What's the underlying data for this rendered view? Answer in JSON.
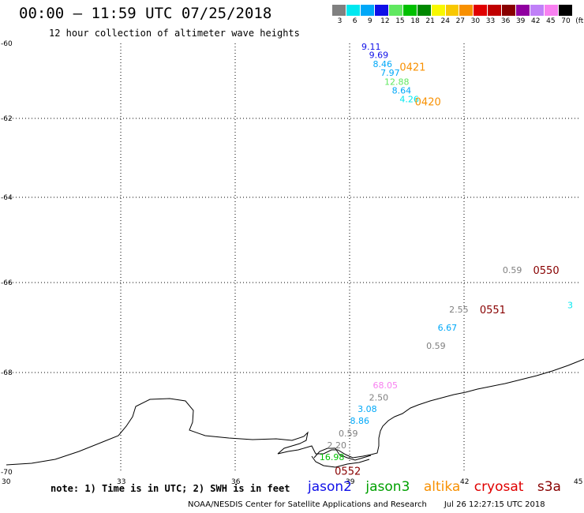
{
  "header": {
    "title": "00:00 – 11:59 UTC 07/25/2018",
    "subtitle": "12 hour collection of altimeter wave heights"
  },
  "legend": {
    "colors": [
      "#808080",
      "#00e8f0",
      "#00a8f8",
      "#1010e8",
      "#60e860",
      "#00c000",
      "#008800",
      "#f8f800",
      "#f8c800",
      "#f89000",
      "#e00000",
      "#c00000",
      "#880000",
      "#9000a0",
      "#c080f8",
      "#f880f0",
      "#000000"
    ],
    "labels": [
      "3",
      "6",
      "9",
      "12",
      "15",
      "18",
      "21",
      "24",
      "27",
      "30",
      "33",
      "36",
      "39",
      "42",
      "45",
      "70",
      "(ft)"
    ]
  },
  "axes": {
    "x_ticks": [
      "30",
      "33",
      "36",
      "39",
      "42",
      "45"
    ],
    "y_ticks": [
      "-60",
      "-62",
      "-64",
      "-66",
      "-68",
      "-70"
    ]
  },
  "map_data": {
    "lon_range": [
      30,
      45
    ],
    "lat_range": [
      -70,
      -60
    ],
    "observations": [
      {
        "lon": 39.6,
        "lat": -60.08,
        "value": "9.11",
        "color": "#1010e8"
      },
      {
        "lon": 39.8,
        "lat": -60.3,
        "value": "9.69",
        "color": "#1010e8"
      },
      {
        "lon": 39.9,
        "lat": -60.55,
        "value": "8.46",
        "color": "#00a8f8"
      },
      {
        "lon": 40.1,
        "lat": -60.78,
        "value": "7.97",
        "color": "#00a8f8"
      },
      {
        "lon": 40.2,
        "lat": -61.02,
        "value": "12.88",
        "color": "#60e860"
      },
      {
        "lon": 40.4,
        "lat": -61.25,
        "value": "8.64",
        "color": "#00a8f8"
      },
      {
        "lon": 40.6,
        "lat": -61.48,
        "value": "4.26",
        "color": "#00e8f0"
      },
      {
        "lon": 43.3,
        "lat": -65.7,
        "value": "0.59",
        "color": "#808080"
      },
      {
        "lon": 41.9,
        "lat": -66.6,
        "value": "2.55",
        "color": "#808080"
      },
      {
        "lon": 41.6,
        "lat": -67.0,
        "value": "6.67",
        "color": "#00a8f8"
      },
      {
        "lon": 41.3,
        "lat": -67.4,
        "value": "0.59",
        "color": "#808080"
      },
      {
        "lon": 45.0,
        "lat": -66.5,
        "value": "3",
        "color": "#00e8f0"
      },
      {
        "lon": 39.9,
        "lat": -68.25,
        "value": "68.05",
        "color": "#f880f0"
      },
      {
        "lon": 39.8,
        "lat": -68.5,
        "value": "2.50",
        "color": "#808080"
      },
      {
        "lon": 39.5,
        "lat": -68.73,
        "value": "3.08",
        "color": "#00a8f8"
      },
      {
        "lon": 39.3,
        "lat": -68.97,
        "value": "8.86",
        "color": "#00a8f8"
      },
      {
        "lon": 39.0,
        "lat": -69.22,
        "value": "0.59",
        "color": "#808080"
      },
      {
        "lon": 38.7,
        "lat": -69.46,
        "value": "2.20",
        "color": "#808080"
      },
      {
        "lon": 38.5,
        "lat": -69.7,
        "value": "16.98",
        "color": "#00c000"
      }
    ],
    "pass_labels": [
      {
        "lon": 40.6,
        "lat": -60.62,
        "text": "0421",
        "color": "#f89000"
      },
      {
        "lon": 41.0,
        "lat": -61.55,
        "text": "0420",
        "color": "#f89000"
      },
      {
        "lon": 44.1,
        "lat": -65.7,
        "text": "0550",
        "color": "#880000"
      },
      {
        "lon": 42.7,
        "lat": -66.6,
        "text": "0551",
        "color": "#880000"
      },
      {
        "lon": 38.9,
        "lat": -69.98,
        "text": "0552",
        "color": "#880000"
      }
    ]
  },
  "note": "note: 1) Time is in UTC; 2) SWH is in feet",
  "satellites": [
    {
      "name": "jason2",
      "color": "#1010e8"
    },
    {
      "name": "jason3",
      "color": "#00a000"
    },
    {
      "name": "altika",
      "color": "#f89000"
    },
    {
      "name": "cryosat",
      "color": "#e00000"
    },
    {
      "name": "s3a",
      "color": "#880000"
    }
  ],
  "footer": {
    "credit": "NOAA/NESDIS Center for Satellite Applications and Research",
    "timestamp": "Jul 26 12:27:15 UTC 2018"
  }
}
